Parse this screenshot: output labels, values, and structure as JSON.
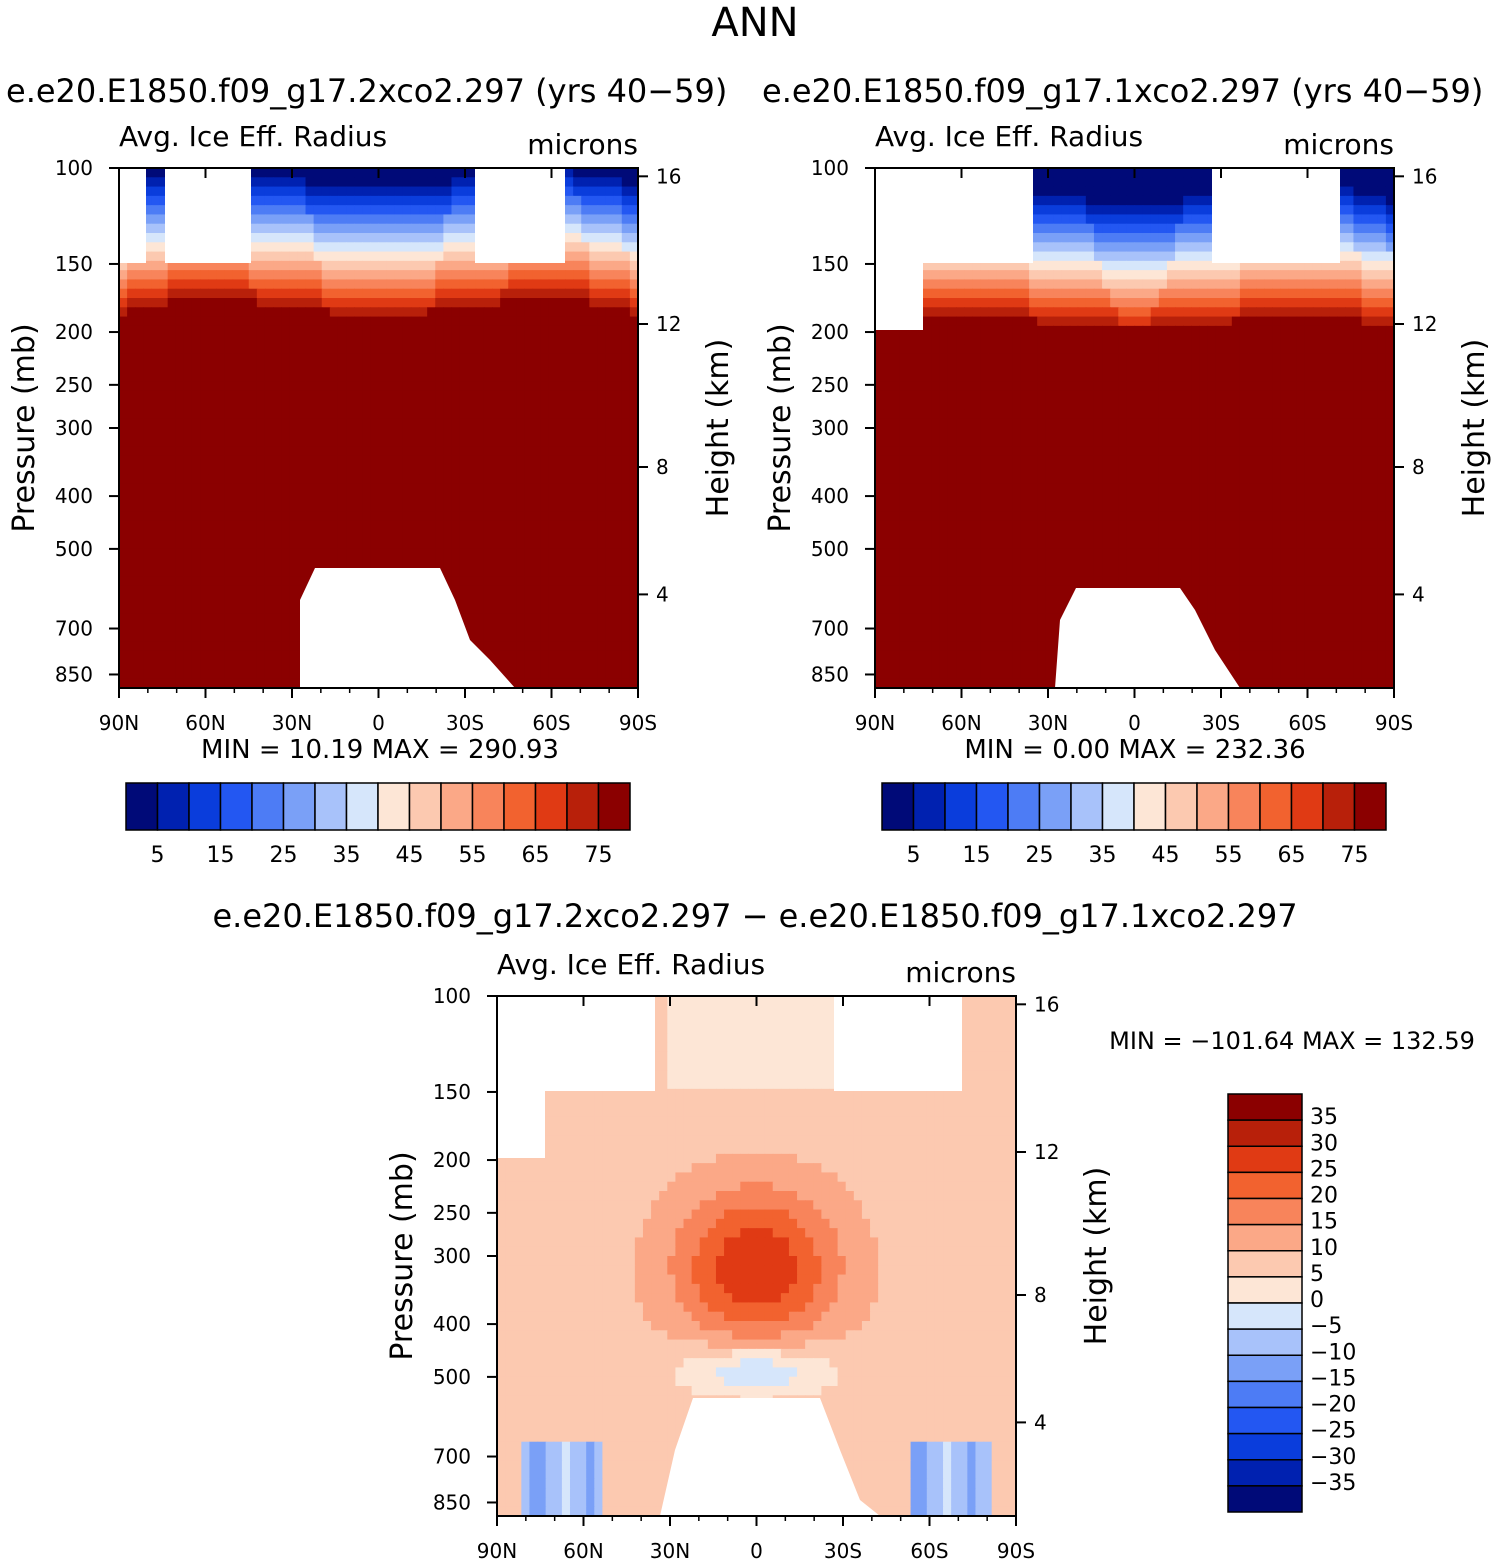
{
  "title": "ANN",
  "panels": {
    "left": {
      "case": "e.e20.E1850.f09_g17.2xco2.297 (yrs 40−59)",
      "var_label": "Avg. Ice Eff. Radius",
      "units": "microns",
      "stats": "MIN =   10.19   MAX = 290.93"
    },
    "right": {
      "case": "e.e20.E1850.f09_g17.1xco2.297 (yrs 40−59)",
      "var_label": "Avg. Ice Eff. Radius",
      "units": "microns",
      "stats": "MIN =     0.00   MAX = 232.36"
    },
    "diff": {
      "case": "e.e20.E1850.f09_g17.2xco2.297 − e.e20.E1850.f09_g17.1xco2.297",
      "var_label": "Avg. Ice Eff. Radius",
      "units": "microns",
      "stats": "MIN = −101.64   MAX = 132.59"
    }
  },
  "chart_data": [
    {
      "type": "contour",
      "panel": "left",
      "title": "Avg. Ice Eff. Radius",
      "ylabel_left": "Pressure (mb)",
      "ylabel_right": "Height (km)",
      "x_ticks": [
        "90N",
        "60N",
        "30N",
        "0",
        "30S",
        "60S",
        "90S"
      ],
      "y_ticks_pressure": [
        "100",
        "150",
        "200",
        "250",
        "300",
        "400",
        "500",
        "700",
        "850"
      ],
      "y_ticks_height": [
        "16",
        "12",
        "8",
        "4"
      ],
      "min": 10.19,
      "max": 290.93,
      "colorbar_levels": [
        "5",
        "15",
        "25",
        "35",
        "45",
        "55",
        "65",
        "75"
      ]
    },
    {
      "type": "contour",
      "panel": "right",
      "title": "Avg. Ice Eff. Radius",
      "ylabel_left": "Pressure (mb)",
      "ylabel_right": "Height (km)",
      "x_ticks": [
        "90N",
        "60N",
        "30N",
        "0",
        "30S",
        "60S",
        "90S"
      ],
      "y_ticks_pressure": [
        "100",
        "150",
        "200",
        "250",
        "300",
        "400",
        "500",
        "700",
        "850"
      ],
      "y_ticks_height": [
        "16",
        "12",
        "8",
        "4"
      ],
      "min": 0.0,
      "max": 232.36,
      "colorbar_levels": [
        "5",
        "15",
        "25",
        "35",
        "45",
        "55",
        "65",
        "75"
      ]
    },
    {
      "type": "contour",
      "panel": "diff",
      "title": "Avg. Ice Eff. Radius",
      "ylabel_left": "Pressure (mb)",
      "ylabel_right": "Height (km)",
      "x_ticks": [
        "90N",
        "60N",
        "30N",
        "0",
        "30S",
        "60S",
        "90S"
      ],
      "y_ticks_pressure": [
        "100",
        "150",
        "200",
        "250",
        "300",
        "400",
        "500",
        "700",
        "850"
      ],
      "y_ticks_height": [
        "16",
        "12",
        "8",
        "4"
      ],
      "min": -101.64,
      "max": 132.59,
      "colorbar_levels": [
        "35",
        "30",
        "25",
        "20",
        "15",
        "10",
        "5",
        "0",
        "−5",
        "−10",
        "−15",
        "−20",
        "−25",
        "−30",
        "−35"
      ]
    }
  ],
  "colors": {
    "palette": [
      "#000a78",
      "#0021b0",
      "#0a3ddc",
      "#2357f2",
      "#4d7cf5",
      "#7aa0f7",
      "#a8c2fa",
      "#d6e6fb",
      "#fde6d6",
      "#fcc9b0",
      "#fba887",
      "#f8845b",
      "#f2622f",
      "#e03a14",
      "#b8200a",
      "#8b0000"
    ]
  }
}
